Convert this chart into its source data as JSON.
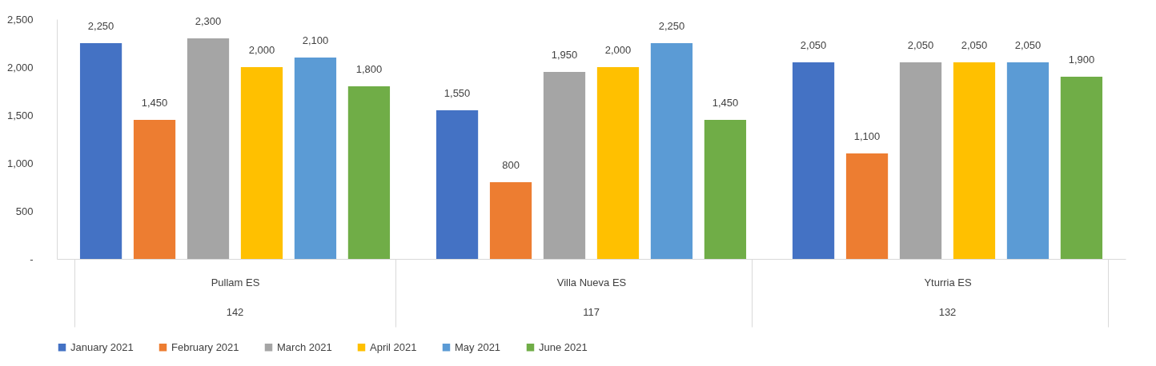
{
  "chart_data": {
    "type": "bar",
    "categories": [
      "Pullam ES",
      "Villa Nueva ES",
      "Yturria ES"
    ],
    "series": [
      {
        "name": "January 2021",
        "color": "#4472c4",
        "values": [
          2250,
          1550,
          2050
        ],
        "value_labels": [
          "2,250",
          "1,550",
          "2,050"
        ]
      },
      {
        "name": "February 2021",
        "color": "#ed7d31",
        "values": [
          1450,
          800,
          1100
        ],
        "value_labels": [
          "1,450",
          "800",
          "1,100"
        ]
      },
      {
        "name": "March 2021",
        "color": "#a5a5a5",
        "values": [
          2300,
          1950,
          2050
        ],
        "value_labels": [
          "2,300",
          "1,950",
          "2,050"
        ]
      },
      {
        "name": "April 2021",
        "color": "#ffc000",
        "values": [
          2000,
          2000,
          2050
        ],
        "value_labels": [
          "2,000",
          "2,000",
          "2,050"
        ]
      },
      {
        "name": "May 2021",
        "color": "#5b9bd5",
        "values": [
          2100,
          2250,
          2050
        ],
        "value_labels": [
          "2,100",
          "2,250",
          "2,050"
        ]
      },
      {
        "name": "June 2021",
        "color": "#70ad47",
        "values": [
          1800,
          1450,
          1900
        ],
        "value_labels": [
          "1,800",
          "1,450",
          "1,900"
        ]
      }
    ],
    "annotations": [
      "142",
      "117",
      "132"
    ],
    "ylim": [
      0,
      2500
    ],
    "yticks": [
      {
        "value": 0,
        "label": "-"
      },
      {
        "value": 500,
        "label": "500"
      },
      {
        "value": 1000,
        "label": "1,000"
      },
      {
        "value": 1500,
        "label": "1,500"
      },
      {
        "value": 2000,
        "label": "2,000"
      },
      {
        "value": 2500,
        "label": "2,500"
      }
    ],
    "legend": "bottom",
    "grid": false
  }
}
